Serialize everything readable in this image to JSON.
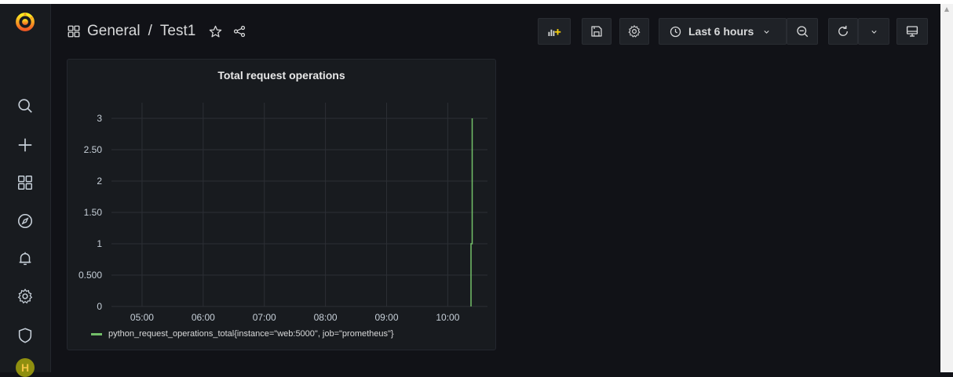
{
  "header": {
    "folder": "General",
    "separator": "/",
    "dashboard": "Test1"
  },
  "toolbar": {
    "time_range": "Last 6 hours"
  },
  "sidebar": {
    "items": [
      "grafana-logo",
      "search",
      "create",
      "dashboards",
      "explore",
      "alerting",
      "configuration",
      "server-admin",
      "user-avatar"
    ],
    "avatar_letter": "H"
  },
  "panel": {
    "title": "Total request operations"
  },
  "chart_data": {
    "type": "line",
    "title": "Total request operations",
    "y_ticks": [
      "0",
      "0.500",
      "1",
      "1.50",
      "2",
      "2.50",
      "3"
    ],
    "x_ticks": [
      "05:00",
      "06:00",
      "07:00",
      "08:00",
      "09:00",
      "10:00"
    ],
    "ylim": [
      0,
      3.25
    ],
    "x_hours": [
      4.5,
      10.65
    ],
    "grid": true,
    "legend_position": "bottom",
    "series": [
      {
        "name": "python_request_operations_total{instance=\"web:5000\", job=\"prometheus\"}",
        "color": "#73bf69",
        "points": [
          [
            10.38,
            0
          ],
          [
            10.38,
            1
          ],
          [
            10.4,
            1
          ],
          [
            10.4,
            3
          ]
        ]
      }
    ]
  },
  "colors": {
    "accent_green": "#73bf69",
    "logo_orange": "#f05a28",
    "avatar_bg": "#8f8f0f"
  }
}
